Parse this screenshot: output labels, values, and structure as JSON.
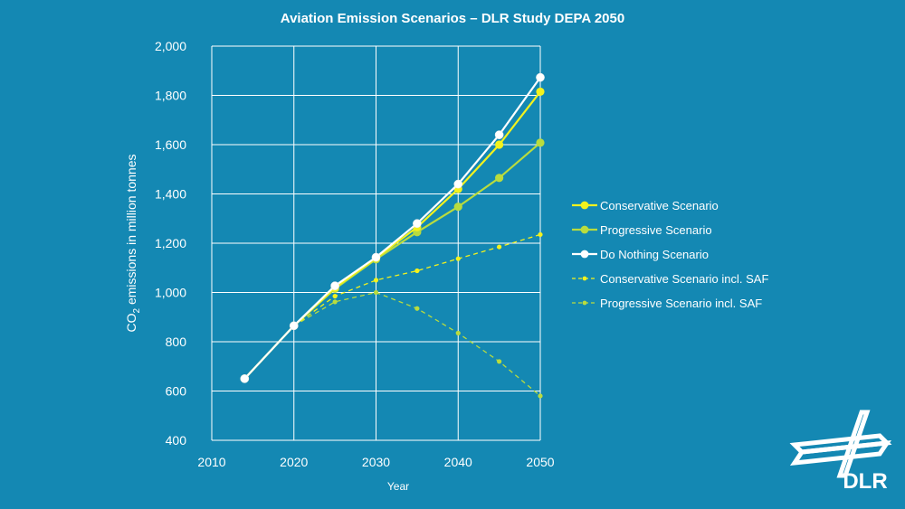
{
  "chart_data": {
    "type": "line",
    "title": "Aviation Emission Scenarios – DLR Study DEPA 2050",
    "xlabel": "Year",
    "ylabel": {
      "prefix": "CO",
      "subscript": "2",
      "suffix": " emissions in million tonnes"
    },
    "xlim": [
      2010,
      2050
    ],
    "ylim": [
      400,
      2000
    ],
    "xticks": [
      2010,
      2020,
      2030,
      2040,
      2050
    ],
    "yticks": [
      400,
      600,
      800,
      1000,
      1200,
      1400,
      1600,
      1800,
      2000
    ],
    "ytick_labels": [
      "400",
      "600",
      "800",
      "1,000",
      "1,200",
      "1,400",
      "1,600",
      "1,800",
      "2,000"
    ],
    "grid": true,
    "legend_position": "right",
    "series": [
      {
        "key": "do-nothing",
        "name": "Do Nothing Scenario",
        "color": "#ffffff",
        "style": "solid",
        "x": [
          2014,
          2020,
          2025,
          2030,
          2035,
          2040,
          2045,
          2050
        ],
        "y": [
          650,
          865,
          1027,
          1143,
          1280,
          1440,
          1640,
          1873
        ]
      },
      {
        "key": "conservative",
        "name": "Conservative Scenario",
        "color": "#f3f21d",
        "style": "solid",
        "x": [
          2014,
          2020,
          2025,
          2030,
          2035,
          2040,
          2045,
          2050
        ],
        "y": [
          650,
          865,
          1020,
          1140,
          1265,
          1420,
          1600,
          1815
        ]
      },
      {
        "key": "progressive",
        "name": "Progressive Scenario",
        "color": "#b9dc3e",
        "style": "solid",
        "x": [
          2014,
          2020,
          2025,
          2030,
          2035,
          2040,
          2045,
          2050
        ],
        "y": [
          650,
          865,
          1015,
          1135,
          1245,
          1348,
          1465,
          1608
        ]
      },
      {
        "key": "conservative-saf",
        "name": "Conservative Scenario incl. SAF",
        "color": "#f3f21d",
        "style": "dashed",
        "x": [
          2020,
          2025,
          2030,
          2035,
          2040,
          2045,
          2050
        ],
        "y": [
          865,
          985,
          1050,
          1088,
          1137,
          1185,
          1235
        ]
      },
      {
        "key": "progressive-saf",
        "name": "Progressive Scenario incl. SAF",
        "color": "#b9dc3e",
        "style": "dashed",
        "x": [
          2020,
          2025,
          2030,
          2035,
          2040,
          2045,
          2050
        ],
        "y": [
          865,
          962,
          1000,
          935,
          835,
          720,
          580
        ]
      }
    ],
    "legend_order": [
      "conservative",
      "progressive",
      "do-nothing",
      "conservative-saf",
      "progressive-saf"
    ]
  },
  "logo": {
    "text": "DLR",
    "name": "dlr-logo"
  },
  "colors": {
    "background": "#1488b3",
    "grid": "#ffffff"
  }
}
